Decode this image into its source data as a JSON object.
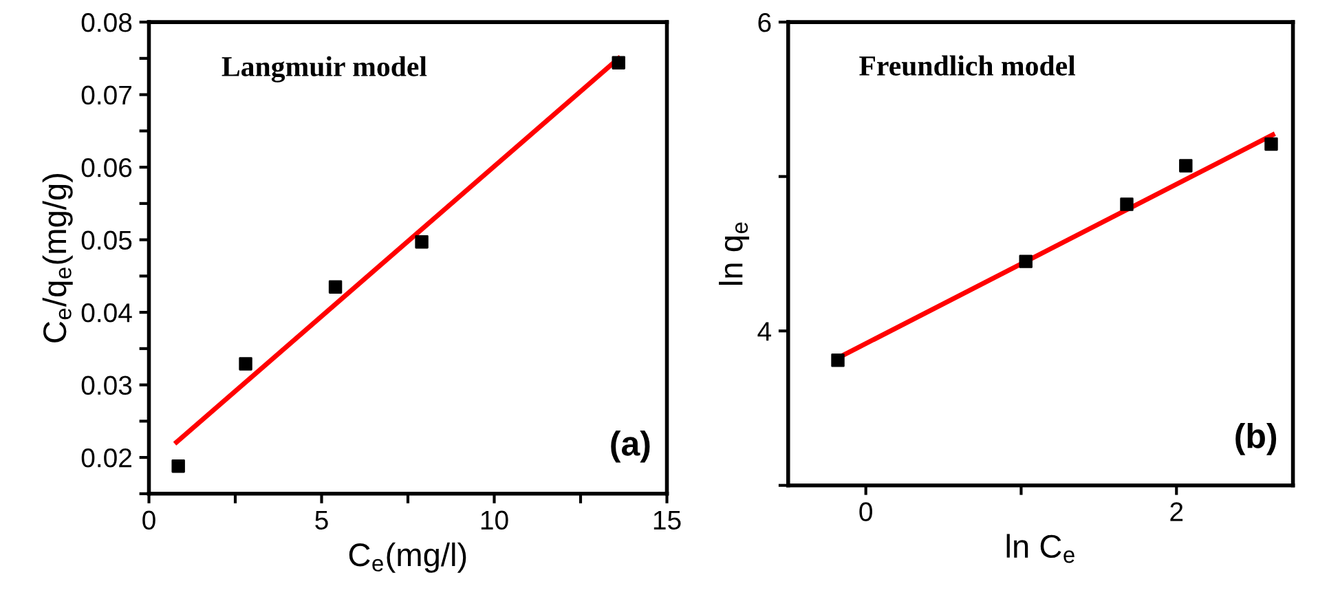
{
  "chart_data": [
    {
      "type": "scatter",
      "xlabel": "C$_{e}$(mg/l)",
      "ylabel": "C$_{e}$/q$_{e}$(mg/g)",
      "annotations": [
        "Langmuir model",
        "(a)"
      ],
      "series": [
        {
          "color": "#000000",
          "marker": "square",
          "x": [
            0.85,
            2.8,
            5.4,
            7.9,
            13.6
          ],
          "values": [
            0.0188,
            0.0329,
            0.0435,
            0.0497,
            0.0744
          ]
        },
        {
          "type": "line",
          "color": "#ff0000",
          "marker": "none",
          "line_style": "solid",
          "x": [
            0.8,
            13.6
          ],
          "values": [
            0.0221,
            0.075
          ]
        }
      ],
      "xlim": [
        0,
        15
      ],
      "xticks": [
        0,
        {
          "value": 2.5,
          "label": null
        },
        5,
        {
          "value": 7.5,
          "label": null
        },
        10,
        {
          "value": 12.5,
          "label": null
        },
        15
      ],
      "ylim": [
        0.015,
        0.08
      ],
      "yticks": [
        {
          "value": 0.015,
          "label": null
        },
        {
          "value": 0.02,
          "label": "0.02"
        },
        {
          "value": 0.025,
          "label": null
        },
        {
          "value": 0.03,
          "label": "0.03"
        },
        {
          "value": 0.035,
          "label": null
        },
        {
          "value": 0.04,
          "label": "0.04"
        },
        {
          "value": 0.045,
          "label": null
        },
        {
          "value": 0.05,
          "label": "0.05"
        },
        {
          "value": 0.055,
          "label": null
        },
        {
          "value": 0.06,
          "label": "0.06"
        },
        {
          "value": 0.065,
          "label": null
        },
        {
          "value": 0.07,
          "label": "0.07"
        },
        {
          "value": 0.075,
          "label": null
        },
        {
          "value": 0.08,
          "label": "0.08"
        }
      ],
      "grid": false,
      "legend": false
    },
    {
      "type": "scatter",
      "xlabel": "ln C$_{e}$",
      "ylabel": "ln q$_{e}$",
      "annotations": [
        "Freundlich model",
        "(b)"
      ],
      "series": [
        {
          "color": "#000000",
          "marker": "square",
          "x": [
            -0.18,
            1.03,
            1.68,
            2.06,
            2.61
          ],
          "values": [
            3.81,
            4.45,
            4.82,
            5.07,
            5.21
          ]
        },
        {
          "type": "line",
          "color": "#ff0000",
          "marker": "none",
          "line_style": "solid",
          "x": [
            -0.19,
            2.62
          ],
          "values": [
            3.82,
            5.27
          ]
        }
      ],
      "xlim": [
        -0.5,
        2.75
      ],
      "xticks": [
        0,
        {
          "value": 1,
          "label": null
        },
        2
      ],
      "ylim": [
        3,
        6
      ],
      "yticks": [
        {
          "value": 3,
          "label": null
        },
        4,
        {
          "value": 5,
          "label": null
        },
        6
      ],
      "grid": false,
      "legend": false
    }
  ]
}
